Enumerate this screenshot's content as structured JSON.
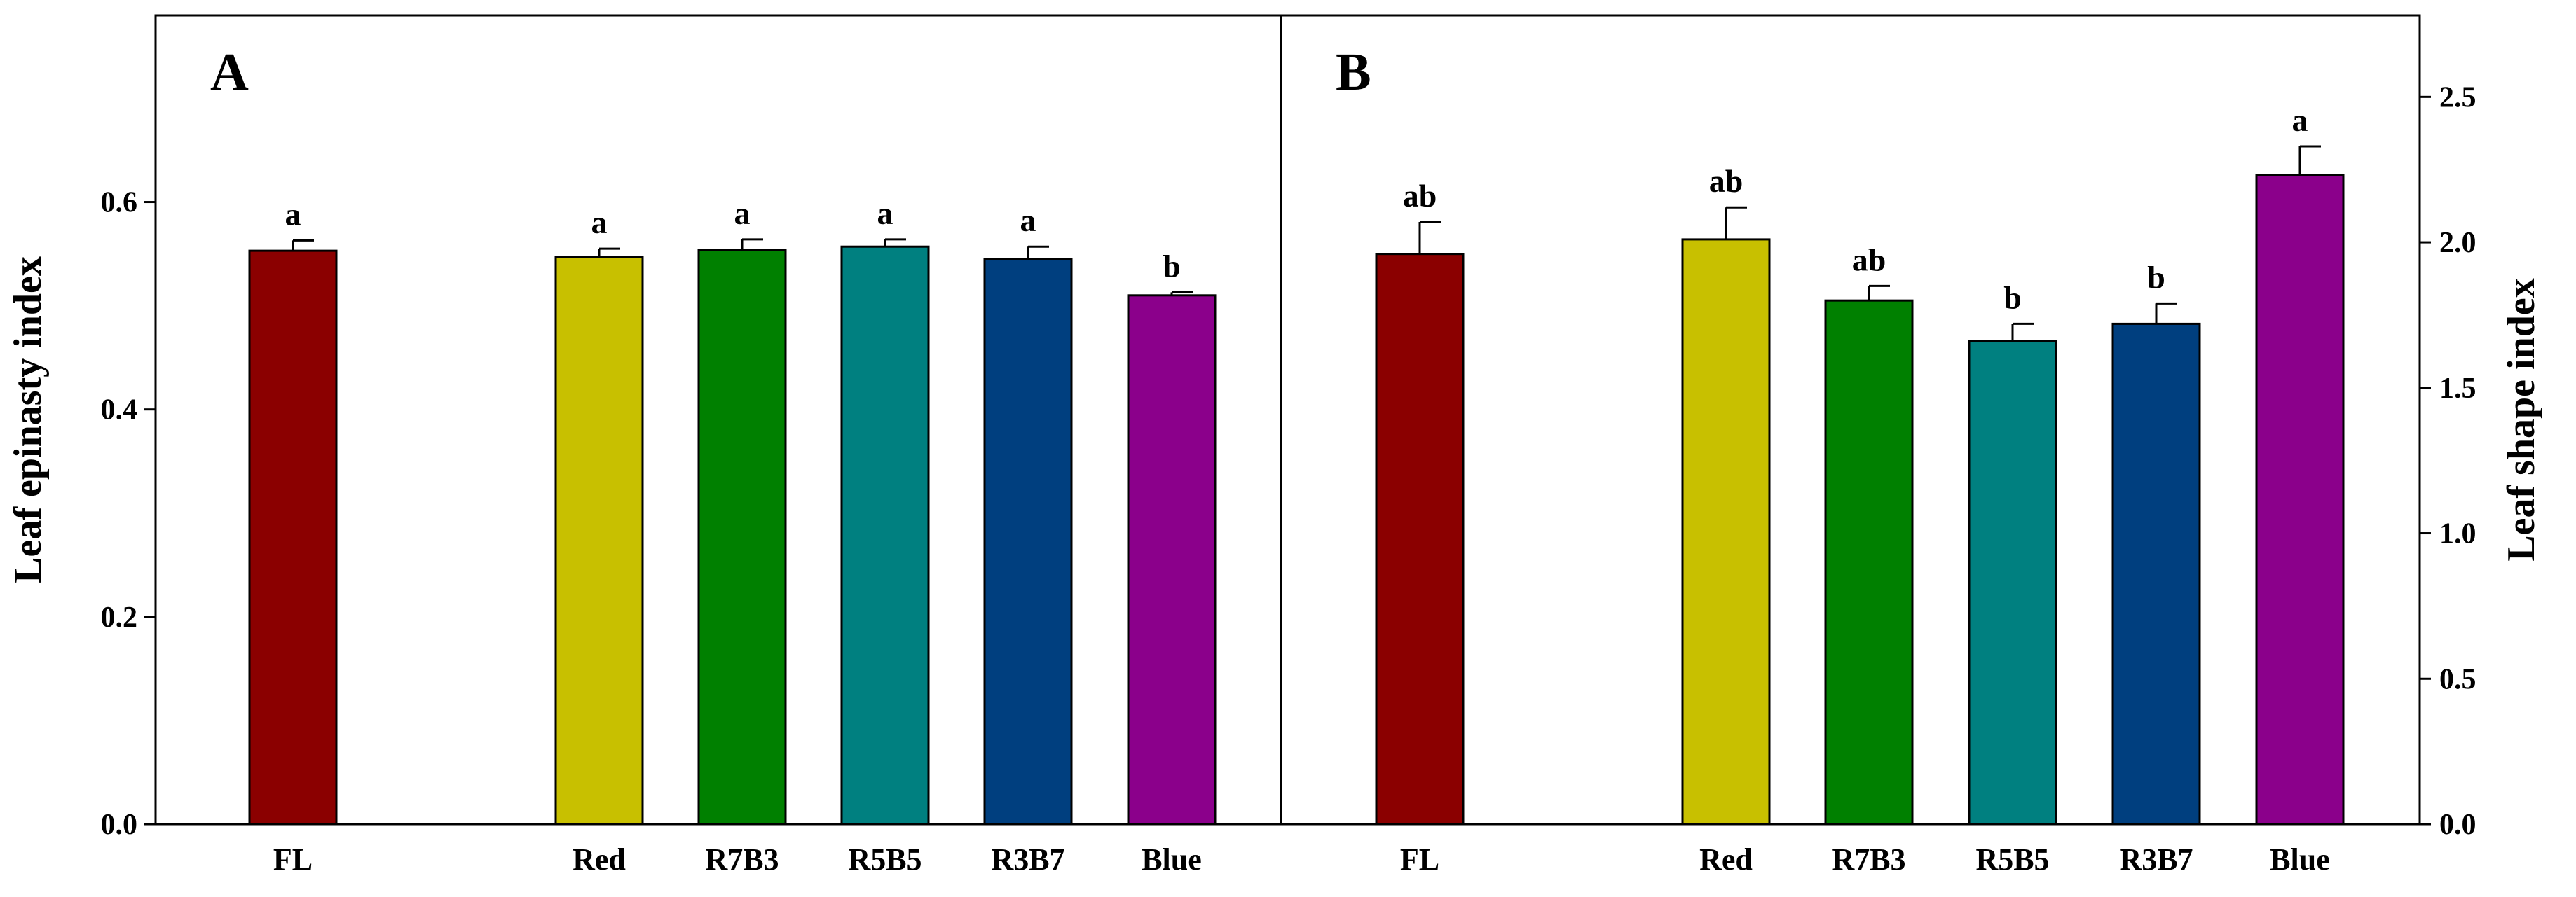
{
  "chart_data": [
    {
      "type": "bar",
      "panel_label": "A",
      "categories": [
        "FL",
        "Red",
        "R7B3",
        "R5B5",
        "R3B7",
        "Blue"
      ],
      "values": [
        0.553,
        0.547,
        0.554,
        0.557,
        0.545,
        0.51
      ],
      "errors": [
        0.01,
        0.008,
        0.01,
        0.007,
        0.012,
        0.003
      ],
      "significance": [
        "a",
        "a",
        "a",
        "a",
        "a",
        "b"
      ],
      "colors": [
        "#8B0000",
        "#C8C000",
        "#008000",
        "#008080",
        "#003F7F",
        "#8B008B"
      ],
      "ylabel": "Leaf epinasty index",
      "ylim": [
        0,
        0.78
      ],
      "yticks": [
        "0.0",
        "0.2",
        "0.4",
        "0.6"
      ],
      "ytick_values": [
        0,
        0.2,
        0.4,
        0.6
      ],
      "y_axis_side": "left",
      "grid": false,
      "legend": "none"
    },
    {
      "type": "bar",
      "panel_label": "B",
      "categories": [
        "FL",
        "Red",
        "R7B3",
        "R5B5",
        "R3B7",
        "Blue"
      ],
      "values": [
        1.96,
        2.01,
        1.8,
        1.66,
        1.72,
        2.23
      ],
      "errors": [
        0.11,
        0.11,
        0.05,
        0.06,
        0.07,
        0.1
      ],
      "significance": [
        "ab",
        "ab",
        "ab",
        "b",
        "b",
        "a"
      ],
      "colors": [
        "#8B0000",
        "#C8C000",
        "#008000",
        "#008080",
        "#003F7F",
        "#8B008B"
      ],
      "ylabel": "Leaf shape index",
      "ylim": [
        0,
        2.78
      ],
      "yticks": [
        "0.0",
        "0.5",
        "1.0",
        "1.5",
        "2.0",
        "2.5"
      ],
      "ytick_values": [
        0,
        0.5,
        1.0,
        1.5,
        2.0,
        2.5
      ],
      "y_axis_side": "right",
      "grid": false,
      "legend": "none"
    }
  ]
}
